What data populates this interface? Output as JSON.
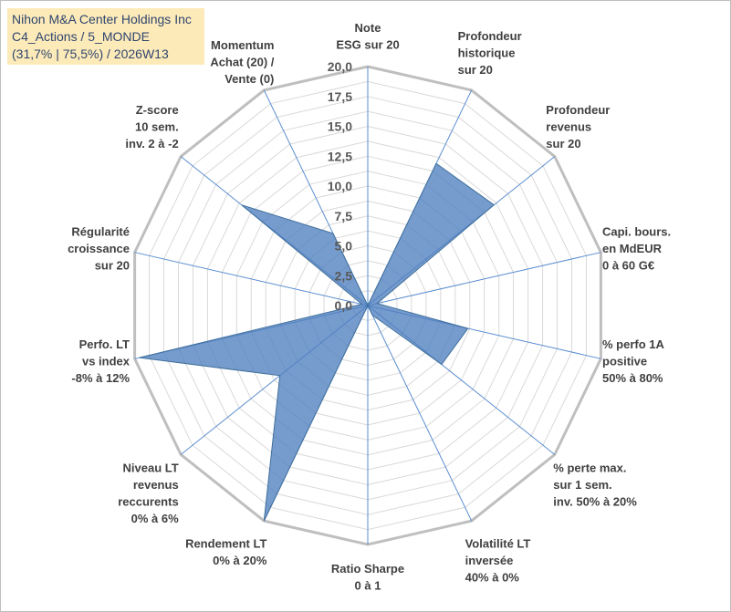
{
  "chart_data": {
    "type": "radar",
    "title_lines": [
      "Nihon M&A Center Holdings Inc",
      "C4_Actions / 5_MONDE",
      "(31,7% | 75,5%) / 2026W13"
    ],
    "axes": [
      {
        "label": [
          "Note",
          "ESG sur 20"
        ],
        "value": 0
      },
      {
        "label": [
          "Profondeur",
          "historique",
          "sur 20"
        ],
        "value": 13.2
      },
      {
        "label": [
          "Profondeur",
          "revenus",
          "sur 20"
        ],
        "value": 13.5
      },
      {
        "label": [
          "Capi. bours.",
          "en MdEUR",
          "0 à 60 G€"
        ],
        "value": 0.8
      },
      {
        "label": [
          "% perfo 1A",
          "positive",
          "50% à 80%"
        ],
        "value": 8.6
      },
      {
        "label": [
          "% perte max.",
          "sur 1 sem.",
          "inv. 50% à 20%"
        ],
        "value": 7.9
      },
      {
        "label": [
          "Volatilité LT",
          "inversée",
          "40% à 0%"
        ],
        "value": 0.9
      },
      {
        "label": [
          "Ratio Sharpe",
          "0 à 1"
        ],
        "value": 0
      },
      {
        "label": [
          "Rendement LT",
          "0% à 20%"
        ],
        "value": 20
      },
      {
        "label": [
          "Niveau LT",
          "revenus",
          "reccurents",
          "0% à 6%"
        ],
        "value": 9.4
      },
      {
        "label": [
          "Perfo. LT",
          "vs index",
          "-8% à 12%"
        ],
        "value": 19.6
      },
      {
        "label": [
          "Régularité",
          "croissance",
          "sur 20"
        ],
        "value": 0.5
      },
      {
        "label": [
          "Z-score",
          "10 sem.",
          "inv. 2 à -2"
        ],
        "value": 13.5
      },
      {
        "label": [
          "Momentum",
          "Achat (20) /",
          "Vente (0)"
        ],
        "value": 6.7
      }
    ],
    "scale_min": 0,
    "scale_max": 20,
    "scale_step": 2.5,
    "tick_labels": [
      "0,0",
      "2,5",
      "5,0",
      "7,5",
      "10,0",
      "12,5",
      "15,0",
      "17,5",
      "20,0"
    ],
    "colors": {
      "fill": "#4f7fbf",
      "grid": "#d9d9d9",
      "spoke": "#5b8ed0"
    }
  }
}
